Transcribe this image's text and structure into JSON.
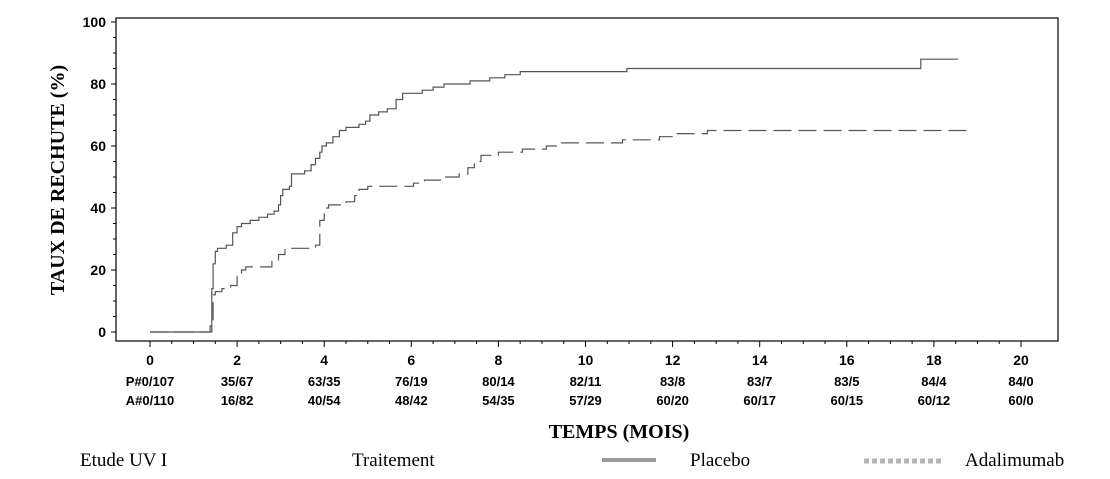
{
  "chart_data": {
    "type": "line",
    "subtype": "kaplan-meier step",
    "xlabel": "TEMPS (MOIS)",
    "ylabel": "TAUX DE RECHUTE (%)",
    "xlim": [
      0,
      20
    ],
    "ylim": [
      0,
      100
    ],
    "x_ticks": [
      "0",
      "2",
      "4",
      "6",
      "8",
      "10",
      "12",
      "14",
      "16",
      "18",
      "20"
    ],
    "y_ticks": [
      "0",
      "20",
      "40",
      "60",
      "80",
      "100"
    ],
    "grid": false,
    "series": [
      {
        "name": "Placebo",
        "style": "solid",
        "color": "#555555",
        "points": [
          [
            0,
            0
          ],
          [
            1.35,
            0
          ],
          [
            1.38,
            2
          ],
          [
            1.42,
            14
          ],
          [
            1.45,
            22
          ],
          [
            1.5,
            26
          ],
          [
            1.55,
            27
          ],
          [
            1.75,
            28
          ],
          [
            1.9,
            32
          ],
          [
            2.0,
            34
          ],
          [
            2.1,
            35
          ],
          [
            2.3,
            36
          ],
          [
            2.5,
            37
          ],
          [
            2.7,
            38
          ],
          [
            2.85,
            39
          ],
          [
            2.95,
            41
          ],
          [
            3.0,
            44
          ],
          [
            3.05,
            46
          ],
          [
            3.2,
            47
          ],
          [
            3.25,
            51
          ],
          [
            3.35,
            51
          ],
          [
            3.55,
            52
          ],
          [
            3.7,
            54
          ],
          [
            3.8,
            56
          ],
          [
            3.9,
            58
          ],
          [
            3.95,
            60
          ],
          [
            4.05,
            61
          ],
          [
            4.2,
            63
          ],
          [
            4.35,
            65
          ],
          [
            4.5,
            66
          ],
          [
            4.8,
            67
          ],
          [
            4.95,
            68
          ],
          [
            5.05,
            70
          ],
          [
            5.25,
            71
          ],
          [
            5.45,
            72
          ],
          [
            5.65,
            75
          ],
          [
            5.8,
            77
          ],
          [
            6.25,
            78
          ],
          [
            6.5,
            79
          ],
          [
            6.75,
            80
          ],
          [
            7.35,
            81
          ],
          [
            7.8,
            82
          ],
          [
            8.15,
            83
          ],
          [
            8.5,
            84
          ],
          [
            10.95,
            85
          ],
          [
            17.7,
            88
          ],
          [
            18.55,
            88
          ]
        ]
      },
      {
        "name": "Adalimumab",
        "style": "dashed",
        "color": "#555555",
        "points": [
          [
            0,
            0
          ],
          [
            1.35,
            0
          ],
          [
            1.42,
            4
          ],
          [
            1.45,
            12
          ],
          [
            1.5,
            13
          ],
          [
            1.65,
            14
          ],
          [
            1.85,
            15
          ],
          [
            2.0,
            18
          ],
          [
            2.1,
            20
          ],
          [
            2.2,
            21
          ],
          [
            2.8,
            23
          ],
          [
            2.95,
            25
          ],
          [
            3.1,
            27
          ],
          [
            3.8,
            28
          ],
          [
            3.9,
            36
          ],
          [
            4.0,
            40
          ],
          [
            4.1,
            41
          ],
          [
            4.5,
            42
          ],
          [
            4.7,
            44
          ],
          [
            4.8,
            46
          ],
          [
            5.0,
            47
          ],
          [
            6.05,
            48
          ],
          [
            6.3,
            49
          ],
          [
            6.7,
            50
          ],
          [
            7.1,
            51
          ],
          [
            7.3,
            53
          ],
          [
            7.45,
            55
          ],
          [
            7.6,
            57
          ],
          [
            8.0,
            58
          ],
          [
            8.55,
            59
          ],
          [
            9.1,
            60
          ],
          [
            9.4,
            61
          ],
          [
            10.85,
            62
          ],
          [
            11.7,
            63
          ],
          [
            12.05,
            64
          ],
          [
            12.8,
            65
          ],
          [
            18.8,
            65
          ]
        ]
      }
    ],
    "risk_table": [
      {
        "label": "P#0/107",
        "values": [
          "35/67",
          "63/35",
          "76/19",
          "80/14",
          "82/11",
          "83/8",
          "83/7",
          "83/5",
          "84/4",
          "84/0"
        ]
      },
      {
        "label": "A#0/110",
        "values": [
          "16/82",
          "40/54",
          "48/42",
          "54/35",
          "57/29",
          "60/20",
          "60/17",
          "60/15",
          "60/12",
          "60/0"
        ]
      }
    ]
  },
  "legend": {
    "study": "Etude UV I",
    "treatment_label": "Traitement",
    "items": [
      {
        "label": "Placebo",
        "style": "solid"
      },
      {
        "label": "Adalimumab",
        "style": "dashed"
      }
    ]
  }
}
